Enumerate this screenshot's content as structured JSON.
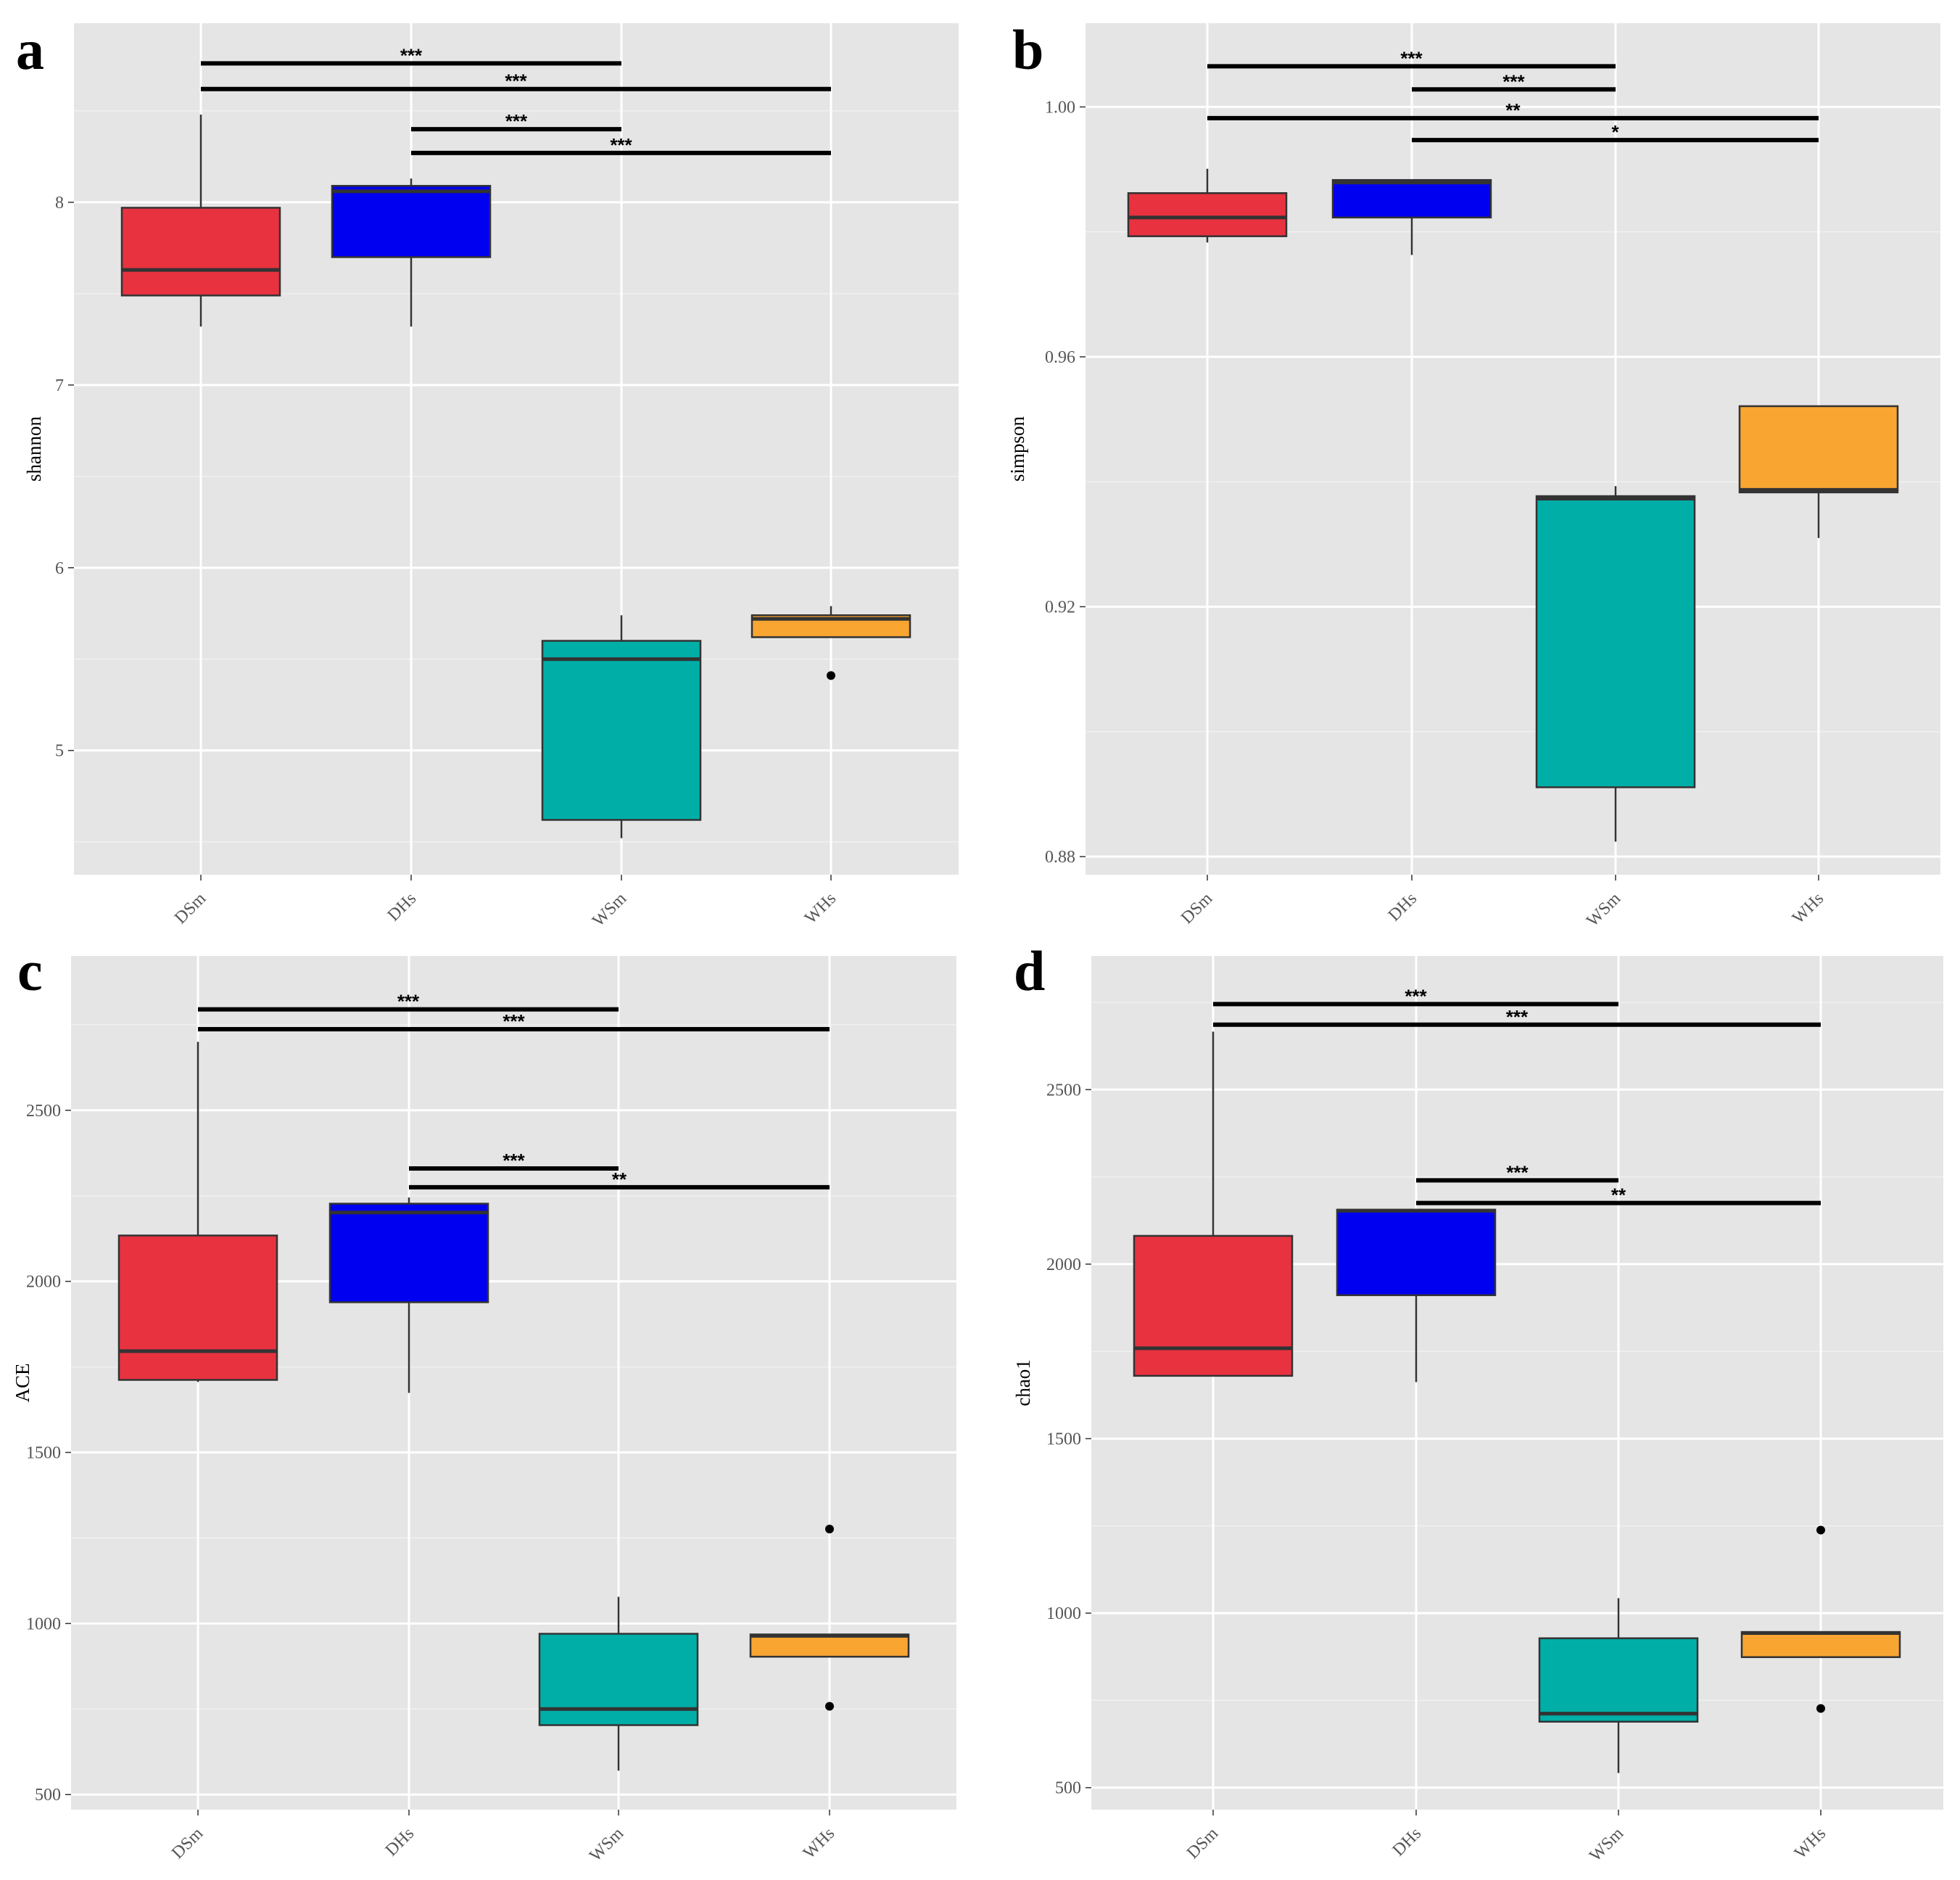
{
  "figure": {
    "background": "#ffffff",
    "panel_background": "#e5e5e5",
    "grid_major": "#ffffff",
    "grid_minor": "#f0f0f0"
  },
  "chart_data": [
    {
      "panel": "a",
      "type": "box",
      "title": "",
      "xlabel": "",
      "ylabel": "shannon",
      "categories": [
        "DSm",
        "DHs",
        "WSm",
        "WHs"
      ],
      "colors": [
        "#e83240",
        "#0000f0",
        "#00aea8",
        "#f8a532"
      ],
      "ylim": [
        4.32,
        8.98
      ],
      "yticks": [
        5,
        6,
        7,
        8
      ],
      "ytick_labels": [
        "5",
        "6",
        "7",
        "8"
      ],
      "boxes": [
        {
          "q1": 7.49,
          "median": 7.63,
          "q3": 7.97,
          "whisker_low": 7.32,
          "whisker_high": 8.48,
          "outliers": []
        },
        {
          "q1": 7.7,
          "median": 8.06,
          "q3": 8.09,
          "whisker_low": 7.32,
          "whisker_high": 8.13,
          "outliers": []
        },
        {
          "q1": 4.62,
          "median": 5.5,
          "q3": 5.6,
          "whisker_low": 4.52,
          "whisker_high": 5.74,
          "outliers": []
        },
        {
          "q1": 5.62,
          "median": 5.72,
          "q3": 5.74,
          "whisker_low": 5.62,
          "whisker_high": 5.79,
          "outliers": [
            5.41
          ]
        }
      ],
      "significance": [
        {
          "from": 0,
          "to": 2,
          "y": 8.76,
          "label": "***"
        },
        {
          "from": 0,
          "to": 3,
          "y": 8.62,
          "label": "***"
        },
        {
          "from": 1,
          "to": 2,
          "y": 8.4,
          "label": "***"
        },
        {
          "from": 1,
          "to": 3,
          "y": 8.27,
          "label": "***"
        }
      ]
    },
    {
      "panel": "b",
      "type": "box",
      "title": "",
      "xlabel": "",
      "ylabel": "simpson",
      "categories": [
        "DSm",
        "DHs",
        "WSm",
        "WHs"
      ],
      "colors": [
        "#e83240",
        "#0000f0",
        "#00aea8",
        "#f8a532"
      ],
      "ylim": [
        0.8771,
        1.0134
      ],
      "yticks": [
        0.88,
        0.92,
        0.96,
        1.0
      ],
      "ytick_labels": [
        "0.88",
        "0.92",
        "0.96",
        "1.00"
      ],
      "boxes": [
        {
          "q1": 0.9793,
          "median": 0.9823,
          "q3": 0.9862,
          "whisker_low": 0.9783,
          "whisker_high": 0.9901,
          "outliers": []
        },
        {
          "q1": 0.9823,
          "median": 0.9879,
          "q3": 0.9883,
          "whisker_low": 0.9763,
          "whisker_high": 0.9883,
          "outliers": []
        },
        {
          "q1": 0.8911,
          "median": 0.9373,
          "q3": 0.9377,
          "whisker_low": 0.8824,
          "whisker_high": 0.9393,
          "outliers": []
        },
        {
          "q1": 0.9383,
          "median": 0.9387,
          "q3": 0.9521,
          "whisker_low": 0.931,
          "whisker_high": 0.9521,
          "outliers": []
        }
      ],
      "significance": [
        {
          "from": 0,
          "to": 2,
          "y": 1.0065,
          "label": "***"
        },
        {
          "from": 1,
          "to": 2,
          "y": 1.0028,
          "label": "***"
        },
        {
          "from": 0,
          "to": 3,
          "y": 0.9982,
          "label": "**"
        },
        {
          "from": 1,
          "to": 3,
          "y": 0.9947,
          "label": "*"
        }
      ]
    },
    {
      "panel": "c",
      "type": "box",
      "title": "",
      "xlabel": "",
      "ylabel": "ACE",
      "categories": [
        "DSm",
        "DHs",
        "WSm",
        "WHs"
      ],
      "colors": [
        "#e83240",
        "#0000f0",
        "#00aea8",
        "#f8a532"
      ],
      "ylim": [
        456,
        2951
      ],
      "yticks": [
        500,
        1000,
        1500,
        2000,
        2500
      ],
      "ytick_labels": [
        "500",
        "1000",
        "1500",
        "2000",
        "2500"
      ],
      "boxes": [
        {
          "q1": 1712,
          "median": 1796,
          "q3": 2134,
          "whisker_low": 1706,
          "whisker_high": 2700,
          "outliers": []
        },
        {
          "q1": 1939,
          "median": 2201,
          "q3": 2227,
          "whisker_low": 1674,
          "whisker_high": 2245,
          "outliers": []
        },
        {
          "q1": 703,
          "median": 750,
          "q3": 970,
          "whisker_low": 570,
          "whisker_high": 1078,
          "outliers": []
        },
        {
          "q1": 903,
          "median": 964,
          "q3": 968,
          "whisker_low": 903,
          "whisker_high": 968,
          "outliers": [
            1276,
            758
          ]
        }
      ],
      "significance": [
        {
          "from": 0,
          "to": 2,
          "y": 2795,
          "label": "***"
        },
        {
          "from": 0,
          "to": 3,
          "y": 2737,
          "label": "***"
        },
        {
          "from": 1,
          "to": 2,
          "y": 2330,
          "label": "***"
        },
        {
          "from": 1,
          "to": 3,
          "y": 2275,
          "label": "**"
        }
      ]
    },
    {
      "panel": "d",
      "type": "box",
      "title": "",
      "xlabel": "",
      "ylabel": "chao1",
      "categories": [
        "DSm",
        "DHs",
        "WSm",
        "WHs"
      ],
      "colors": [
        "#e83240",
        "#0000f0",
        "#00aea8",
        "#f8a532"
      ],
      "ylim": [
        437,
        2883
      ],
      "yticks": [
        500,
        1000,
        1500,
        2000,
        2500
      ],
      "ytick_labels": [
        "500",
        "1000",
        "1500",
        "2000",
        "2500"
      ],
      "boxes": [
        {
          "q1": 1680,
          "median": 1759,
          "q3": 2081,
          "whisker_low": 1680,
          "whisker_high": 2666,
          "outliers": []
        },
        {
          "q1": 1911,
          "median": 2153,
          "q3": 2156,
          "whisker_low": 1662,
          "whisker_high": 2156,
          "outliers": []
        },
        {
          "q1": 689,
          "median": 712,
          "q3": 928,
          "whisker_low": 542,
          "whisker_high": 1043,
          "outliers": []
        },
        {
          "q1": 874,
          "median": 943,
          "q3": 946,
          "whisker_low": 874,
          "whisker_high": 946,
          "outliers": [
            1238,
            727
          ]
        }
      ],
      "significance": [
        {
          "from": 0,
          "to": 2,
          "y": 2745,
          "label": "***"
        },
        {
          "from": 0,
          "to": 3,
          "y": 2686,
          "label": "***"
        },
        {
          "from": 1,
          "to": 2,
          "y": 2240,
          "label": "***"
        },
        {
          "from": 1,
          "to": 3,
          "y": 2175,
          "label": "**"
        }
      ]
    }
  ]
}
